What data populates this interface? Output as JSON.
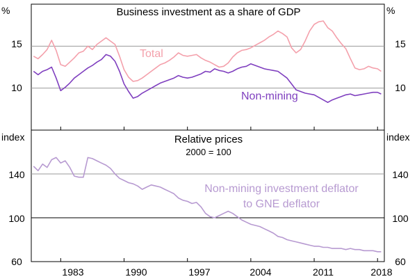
{
  "chart_data": [
    {
      "type": "line",
      "title": "Business investment as a share of GDP",
      "ylabel_left": "%",
      "ylabel_right": "%",
      "ylim": [
        5,
        20
      ],
      "yticks": [
        10,
        15
      ],
      "xlim": [
        1979.75,
        2018.75
      ],
      "series": [
        {
          "name": "Total",
          "color": "#f4a0ab",
          "x": [
            1980.0,
            1980.5,
            1981.0,
            1981.5,
            1982.0,
            1982.5,
            1983.0,
            1983.5,
            1984.0,
            1984.5,
            1985.0,
            1985.5,
            1986.0,
            1986.5,
            1987.0,
            1987.5,
            1988.0,
            1988.5,
            1989.0,
            1989.5,
            1990.0,
            1990.5,
            1991.0,
            1991.5,
            1992.0,
            1992.5,
            1993.0,
            1993.5,
            1994.0,
            1994.5,
            1995.0,
            1995.5,
            1996.0,
            1996.5,
            1997.0,
            1997.5,
            1998.0,
            1998.5,
            1999.0,
            1999.5,
            2000.0,
            2000.5,
            2001.0,
            2001.5,
            2002.0,
            2002.5,
            2003.0,
            2003.5,
            2004.0,
            2004.5,
            2005.0,
            2005.5,
            2006.0,
            2006.5,
            2007.0,
            2007.5,
            2008.0,
            2008.5,
            2009.0,
            2009.5,
            2010.0,
            2010.5,
            2011.0,
            2011.5,
            2012.0,
            2012.5,
            2013.0,
            2013.5,
            2014.0,
            2014.5,
            2015.0,
            2015.5,
            2016.0,
            2016.5,
            2017.0,
            2017.5,
            2018.0,
            2018.4
          ],
          "values": [
            13.8,
            13.5,
            14.0,
            14.6,
            15.7,
            14.5,
            12.8,
            12.6,
            13.1,
            13.6,
            14.2,
            14.4,
            15.0,
            14.6,
            15.2,
            15.6,
            16.0,
            15.6,
            15.2,
            13.8,
            12.2,
            11.3,
            10.8,
            10.9,
            11.2,
            11.6,
            12.0,
            12.4,
            12.8,
            13.0,
            13.3,
            13.7,
            14.2,
            13.9,
            13.8,
            13.9,
            14.0,
            13.6,
            13.3,
            13.1,
            12.8,
            12.5,
            12.6,
            13.0,
            13.7,
            14.2,
            14.5,
            14.6,
            14.8,
            15.1,
            15.4,
            15.7,
            16.1,
            16.4,
            16.8,
            16.5,
            16.1,
            14.8,
            14.2,
            14.6,
            15.6,
            16.8,
            17.6,
            17.9,
            18.0,
            17.2,
            16.8,
            16.0,
            15.3,
            14.7,
            13.5,
            12.4,
            12.2,
            12.3,
            12.6,
            12.4,
            12.3,
            12.0
          ]
        },
        {
          "name": "Non-mining",
          "color": "#7f3fbf",
          "x": [
            1980.0,
            1980.5,
            1981.0,
            1981.5,
            1982.0,
            1982.5,
            1983.0,
            1983.5,
            1984.0,
            1984.5,
            1985.0,
            1985.5,
            1986.0,
            1986.5,
            1987.0,
            1987.5,
            1988.0,
            1988.5,
            1989.0,
            1989.5,
            1990.0,
            1990.5,
            1991.0,
            1991.5,
            1992.0,
            1992.5,
            1993.0,
            1993.5,
            1994.0,
            1994.5,
            1995.0,
            1995.5,
            1996.0,
            1996.5,
            1997.0,
            1997.5,
            1998.0,
            1998.5,
            1999.0,
            1999.5,
            2000.0,
            2000.5,
            2001.0,
            2001.5,
            2002.0,
            2002.5,
            2003.0,
            2003.5,
            2004.0,
            2004.5,
            2005.0,
            2005.5,
            2006.0,
            2006.5,
            2007.0,
            2007.5,
            2008.0,
            2008.5,
            2009.0,
            2009.5,
            2010.0,
            2010.5,
            2011.0,
            2011.5,
            2012.0,
            2012.5,
            2013.0,
            2013.5,
            2014.0,
            2014.5,
            2015.0,
            2015.5,
            2016.0,
            2016.5,
            2017.0,
            2017.5,
            2018.0,
            2018.4
          ],
          "values": [
            12.0,
            11.6,
            12.0,
            12.2,
            12.5,
            11.2,
            9.7,
            10.1,
            10.6,
            11.2,
            11.6,
            12.0,
            12.4,
            12.7,
            13.1,
            13.4,
            14.0,
            13.8,
            13.2,
            12.0,
            10.5,
            9.6,
            8.8,
            9.0,
            9.4,
            9.7,
            10.0,
            10.3,
            10.6,
            10.8,
            11.0,
            11.2,
            11.5,
            11.3,
            11.2,
            11.3,
            11.5,
            11.7,
            12.0,
            11.9,
            12.3,
            12.1,
            12.0,
            11.8,
            12.0,
            12.3,
            12.5,
            12.6,
            12.9,
            12.7,
            12.5,
            12.3,
            12.2,
            12.1,
            12.0,
            11.6,
            11.2,
            10.5,
            9.8,
            9.6,
            9.4,
            9.3,
            9.2,
            8.9,
            8.6,
            8.3,
            8.6,
            8.8,
            9.0,
            9.2,
            9.3,
            9.1,
            9.2,
            9.3,
            9.4,
            9.5,
            9.5,
            9.3
          ]
        }
      ]
    },
    {
      "type": "line",
      "title": "Relative prices",
      "subtitle": "2000 = 100",
      "ylabel_left": "index",
      "ylabel_right": "index",
      "ylim": [
        60,
        180
      ],
      "yticks": [
        60,
        100,
        140
      ],
      "xlim": [
        1979.75,
        2018.75
      ],
      "xticks": [
        1983,
        1990,
        1997,
        2004,
        2011,
        2018
      ],
      "reference_line": 100,
      "series": [
        {
          "name": "Non-mining investment deflator to GNE deflator",
          "color": "#b79ad1",
          "x": [
            1980.0,
            1980.5,
            1981.0,
            1981.5,
            1982.0,
            1982.5,
            1983.0,
            1983.5,
            1984.0,
            1984.5,
            1985.0,
            1985.5,
            1986.0,
            1986.5,
            1987.0,
            1987.5,
            1988.0,
            1988.5,
            1989.0,
            1989.5,
            1990.0,
            1990.5,
            1991.0,
            1991.5,
            1992.0,
            1992.5,
            1993.0,
            1993.5,
            1994.0,
            1994.5,
            1995.0,
            1995.5,
            1996.0,
            1996.5,
            1997.0,
            1997.5,
            1998.0,
            1998.5,
            1999.0,
            1999.5,
            2000.0,
            2000.5,
            2001.0,
            2001.5,
            2002.0,
            2002.5,
            2003.0,
            2003.5,
            2004.0,
            2004.5,
            2005.0,
            2005.5,
            2006.0,
            2006.5,
            2007.0,
            2007.5,
            2008.0,
            2008.5,
            2009.0,
            2009.5,
            2010.0,
            2010.5,
            2011.0,
            2011.5,
            2012.0,
            2012.5,
            2013.0,
            2013.5,
            2014.0,
            2014.5,
            2015.0,
            2015.5,
            2016.0,
            2016.5,
            2017.0,
            2017.5,
            2018.0,
            2018.4
          ],
          "values": [
            147,
            143,
            149,
            146,
            153,
            155,
            150,
            152,
            146,
            138,
            137,
            137,
            155,
            154,
            152,
            150,
            148,
            145,
            140,
            136,
            134,
            132,
            131,
            129,
            126,
            128,
            130,
            129,
            128,
            126,
            124,
            122,
            118,
            116,
            115,
            113,
            114,
            110,
            104,
            101,
            100,
            102,
            104,
            106,
            104,
            101,
            98,
            96,
            94,
            93,
            92,
            90,
            88,
            86,
            83,
            82,
            80,
            79,
            78,
            77,
            76,
            75,
            74,
            74,
            73,
            73,
            72,
            72,
            72,
            71,
            72,
            71,
            71,
            70,
            70,
            70,
            69,
            69
          ]
        }
      ]
    }
  ],
  "x_tick_labels": [
    "1983",
    "1990",
    "1997",
    "2004",
    "2011",
    "2018"
  ],
  "annotations": {
    "total": "Total",
    "non_mining": "Non-mining",
    "deflator_line1": "Non-mining investment deflator",
    "deflator_line2": "to GNE deflator"
  }
}
